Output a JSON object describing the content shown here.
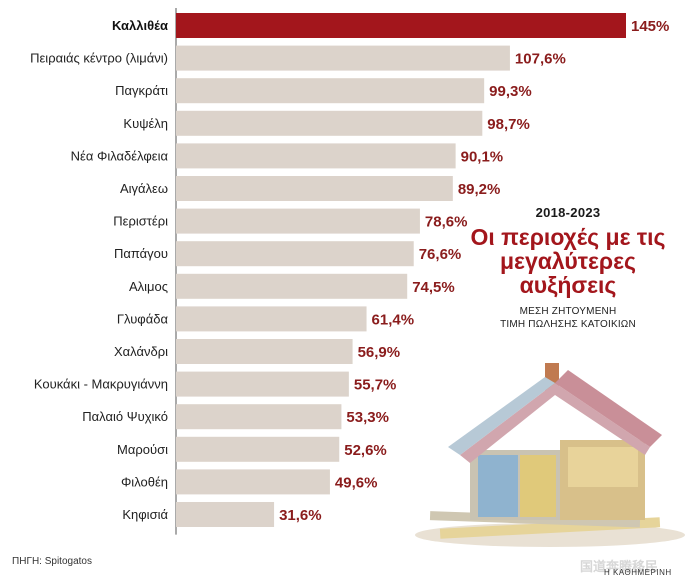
{
  "chart_data": {
    "type": "bar",
    "orientation": "horizontal",
    "categories": [
      "Καλλιθέα",
      "Πειραιάς κέντρο (λιμάνι)",
      "Παγκράτι",
      "Κυψέλη",
      "Νέα Φιλαδέλφεια",
      "Αιγάλεω",
      "Περιστέρι",
      "Παπάγου",
      "Αλιμος",
      "Γλυφάδα",
      "Χαλάνδρι",
      "Κουκάκι - Μακρυγιάννη",
      "Παλαιό Ψυχικό",
      "Μαρούσι",
      "Φιλοθέη",
      "Κηφισιά"
    ],
    "values": [
      145,
      107.6,
      99.3,
      98.7,
      90.1,
      89.2,
      78.6,
      76.6,
      74.5,
      61.4,
      56.9,
      55.7,
      53.3,
      52.6,
      49.6,
      31.6
    ],
    "value_labels": [
      "145%",
      "107,6%",
      "99,3%",
      "98,7%",
      "90,1%",
      "89,2%",
      "78,6%",
      "76,6%",
      "74,5%",
      "61,4%",
      "56,9%",
      "55,7%",
      "53,3%",
      "52,6%",
      "49,6%",
      "31,6%"
    ],
    "highlight_index": 0,
    "colors": {
      "highlight": "#a3161c",
      "bar": "#dcd3cb",
      "value_text": "#8a1c1c"
    },
    "period": "2018-2023",
    "title": "Οι περιοχές με τις μεγαλύτερες αυξήσεις",
    "subtitle_lines": [
      "ΜΕΣΗ ΖΗΤΟΥΜΕΝΗ",
      "ΤΙΜΗ ΠΩΛΗΣΗΣ ΚΑΤΟΙΚΙΩΝ"
    ],
    "xlim": [
      0,
      145
    ]
  },
  "footer": {
    "source": "ΠΗΓΗ: Spitogatos",
    "credit": "Η ΚΑΘΗΜΕΡΙΝΗ",
    "watermark": "国道奔腾移民"
  },
  "illustration": "house-of-euro-banknotes"
}
